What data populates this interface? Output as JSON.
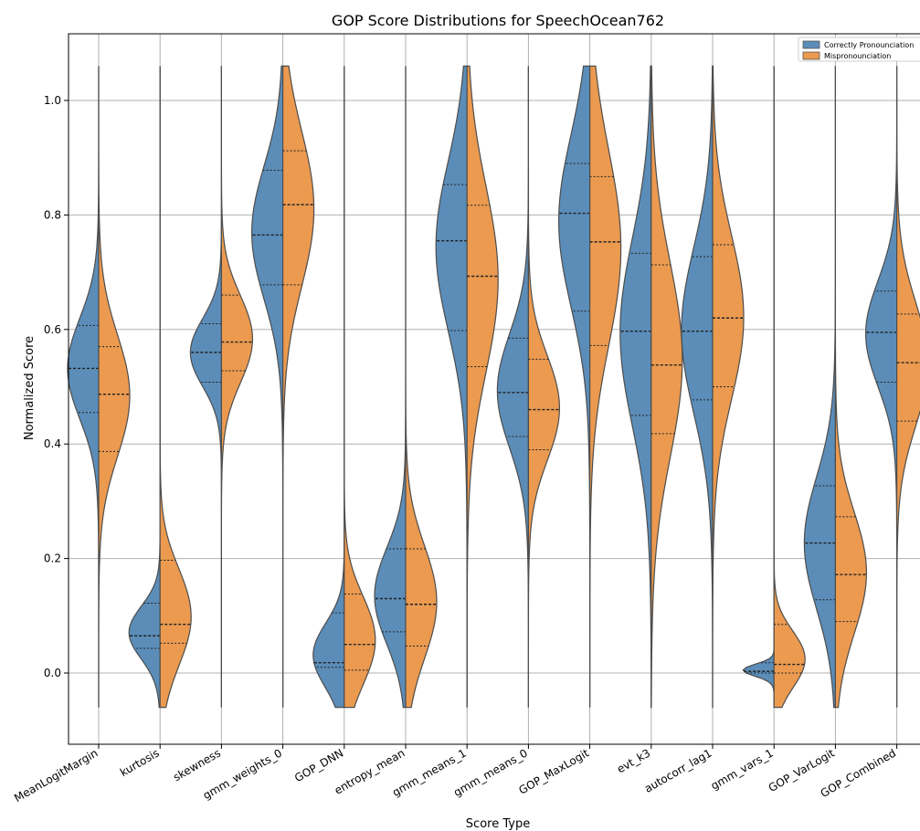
{
  "chart_data": {
    "type": "violin",
    "title": "GOP Score Distributions for SpeechOcean762",
    "xlabel": "Score Type",
    "ylabel": "Normalized Score",
    "ylim": [
      -0.13,
      1.15
    ],
    "yticks": [
      "0.0",
      "0.2",
      "0.4",
      "0.6",
      "0.8",
      "1.0"
    ],
    "grid": true,
    "legend_position": "top-right",
    "categories": [
      "MeanLogitMargin",
      "kurtosis",
      "skewness",
      "gmm_weights_0",
      "GOP_DNN",
      "entropy_mean",
      "gmm_means_1",
      "gmm_means_0",
      "GOP_MaxLogit",
      "evt_k3",
      "autocorr_lag1",
      "gmm_vars_1",
      "GOP_VarLogit",
      "GOP_Combined"
    ],
    "series": [
      {
        "name": "Correctly Pronounciation",
        "color": "#5b8db8",
        "quartiles": [
          [
            0.455,
            0.532,
            0.607
          ],
          [
            0.043,
            0.065,
            0.122
          ],
          [
            0.508,
            0.56,
            0.61
          ],
          [
            0.678,
            0.765,
            0.878
          ],
          [
            0.01,
            0.018,
            0.105
          ],
          [
            0.072,
            0.13,
            0.217
          ],
          [
            0.598,
            0.755,
            0.853
          ],
          [
            0.413,
            0.49,
            0.585
          ],
          [
            0.632,
            0.803,
            0.89
          ],
          [
            0.45,
            0.597,
            0.733
          ],
          [
            0.477,
            0.597,
            0.727
          ],
          [
            0.0,
            0.003,
            0.018
          ],
          [
            0.128,
            0.227,
            0.327
          ],
          [
            0.508,
            0.595,
            0.667
          ]
        ]
      },
      {
        "name": "Mispronounciation",
        "color": "#eb9a50",
        "quartiles": [
          [
            0.387,
            0.487,
            0.57
          ],
          [
            0.052,
            0.085,
            0.197
          ],
          [
            0.528,
            0.578,
            0.66
          ],
          [
            0.678,
            0.818,
            0.912
          ],
          [
            0.005,
            0.05,
            0.138
          ],
          [
            0.047,
            0.12,
            0.217
          ],
          [
            0.535,
            0.693,
            0.817
          ],
          [
            0.39,
            0.46,
            0.548
          ],
          [
            0.572,
            0.753,
            0.867
          ],
          [
            0.418,
            0.538,
            0.713
          ],
          [
            0.5,
            0.62,
            0.748
          ],
          [
            0.0,
            0.015,
            0.085
          ],
          [
            0.09,
            0.172,
            0.273
          ],
          [
            0.44,
            0.542,
            0.627
          ]
        ]
      }
    ]
  }
}
